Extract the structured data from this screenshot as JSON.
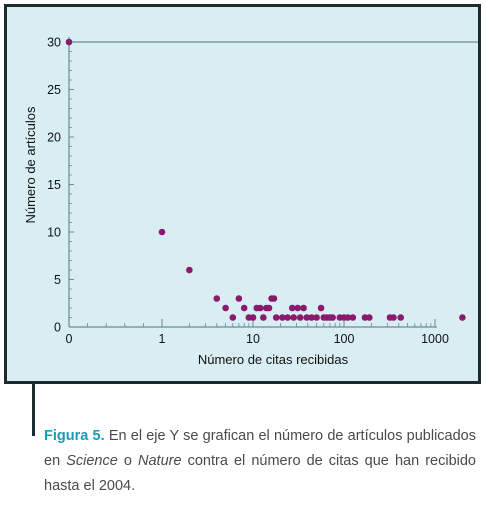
{
  "chart_data": {
    "type": "scatter",
    "xlabel": "Número de citas recibidas",
    "ylabel": "Número de artículos",
    "x_scale": "log (with 0 shown at origin)",
    "x_ticks": [
      "0",
      "1",
      "10",
      "100",
      "1000"
    ],
    "y_ticks": [
      "0",
      "5",
      "10",
      "15",
      "20",
      "25",
      "30"
    ],
    "ylim": [
      0,
      30
    ],
    "grid": "horizontal line at 30",
    "colors": {
      "point": "#8b1a6e",
      "background": "#d9eef2",
      "axis": "#5a6a70"
    },
    "points": [
      {
        "x": 0,
        "y": 30
      },
      {
        "x": 1,
        "y": 10
      },
      {
        "x": 2,
        "y": 6
      },
      {
        "x": 4,
        "y": 3
      },
      {
        "x": 5,
        "y": 2
      },
      {
        "x": 6,
        "y": 1
      },
      {
        "x": 7,
        "y": 3
      },
      {
        "x": 8,
        "y": 2
      },
      {
        "x": 9,
        "y": 1
      },
      {
        "x": 10,
        "y": 1
      },
      {
        "x": 11,
        "y": 2
      },
      {
        "x": 12,
        "y": 2
      },
      {
        "x": 13,
        "y": 1
      },
      {
        "x": 14,
        "y": 2
      },
      {
        "x": 15,
        "y": 2
      },
      {
        "x": 16,
        "y": 3
      },
      {
        "x": 17,
        "y": 3
      },
      {
        "x": 18,
        "y": 1
      },
      {
        "x": 21,
        "y": 1
      },
      {
        "x": 24,
        "y": 1
      },
      {
        "x": 27,
        "y": 2
      },
      {
        "x": 28,
        "y": 1
      },
      {
        "x": 31,
        "y": 2
      },
      {
        "x": 33,
        "y": 1
      },
      {
        "x": 36,
        "y": 2
      },
      {
        "x": 39,
        "y": 1
      },
      {
        "x": 44,
        "y": 1
      },
      {
        "x": 50,
        "y": 1
      },
      {
        "x": 56,
        "y": 2
      },
      {
        "x": 60,
        "y": 1
      },
      {
        "x": 65,
        "y": 1
      },
      {
        "x": 70,
        "y": 1
      },
      {
        "x": 75,
        "y": 1
      },
      {
        "x": 90,
        "y": 1
      },
      {
        "x": 100,
        "y": 1
      },
      {
        "x": 110,
        "y": 1
      },
      {
        "x": 125,
        "y": 1
      },
      {
        "x": 170,
        "y": 1
      },
      {
        "x": 190,
        "y": 1
      },
      {
        "x": 320,
        "y": 1
      },
      {
        "x": 350,
        "y": 1
      },
      {
        "x": 420,
        "y": 1
      },
      {
        "x": 2000,
        "y": 1
      }
    ]
  },
  "caption": {
    "label": "Figura 5.",
    "part1": " En el eje Y se grafican el número de artículos publicados en ",
    "journal1": "Science",
    "part2": " o ",
    "journal2": "Nature",
    "part3": " contra el número de citas que han recibido hasta el 2004."
  }
}
